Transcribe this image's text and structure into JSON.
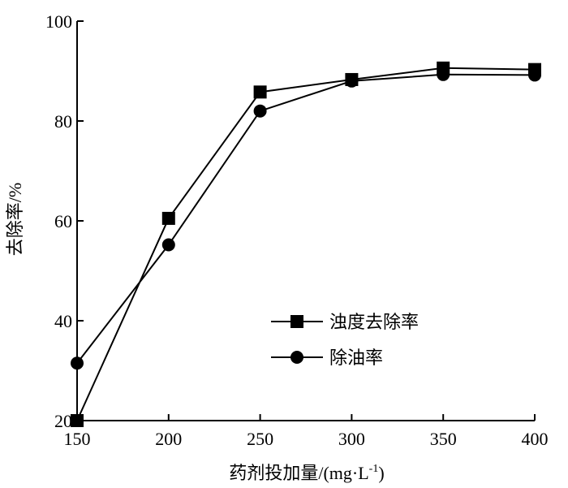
{
  "chart_data": {
    "type": "line",
    "xlabel": "药剂投加量/(mg·L",
    "xlabel_sup": "-1",
    "xlabel_close": ")",
    "ylabel": "去除率/%",
    "x": [
      150,
      200,
      250,
      300,
      350,
      400
    ],
    "xlim": [
      150,
      400
    ],
    "ylim": [
      20,
      100
    ],
    "xticks": [
      "150",
      "200",
      "250",
      "300",
      "350",
      "400"
    ],
    "yticks": [
      "20",
      "40",
      "60",
      "80",
      "100"
    ],
    "grid": false,
    "legend_position": "lower-right",
    "series": [
      {
        "name": "浊度去除率",
        "marker": "square",
        "values": [
          20.0,
          60.5,
          85.8,
          88.3,
          90.6,
          90.3
        ]
      },
      {
        "name": "除油率",
        "marker": "circle",
        "values": [
          31.5,
          55.2,
          82.0,
          88.0,
          89.3,
          89.2
        ]
      }
    ]
  }
}
